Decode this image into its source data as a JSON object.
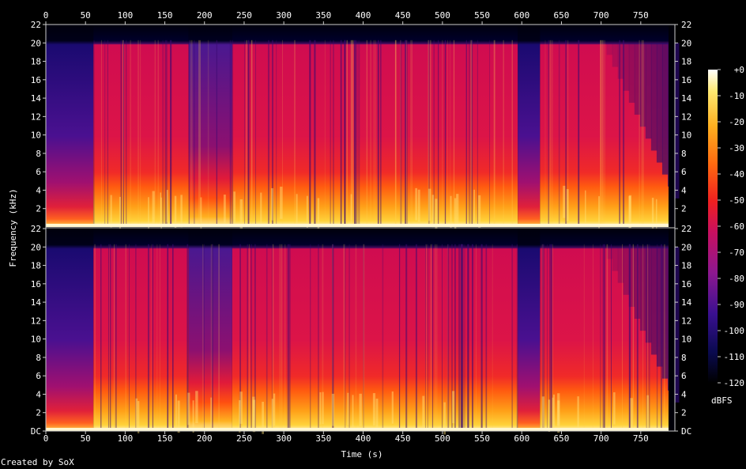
{
  "chart_data": {
    "type": "heatmap",
    "title": "",
    "xlabel": "Time (s)",
    "ylabel": "Frequency (kHz)",
    "xlim": [
      0,
      793
    ],
    "x_ticks": [
      "0",
      "50",
      "100",
      "150",
      "200",
      "250",
      "300",
      "350",
      "400",
      "450",
      "500",
      "550",
      "600",
      "650",
      "700",
      "750"
    ],
    "x_tick_values": [
      0,
      50,
      100,
      150,
      200,
      250,
      300,
      350,
      400,
      450,
      500,
      550,
      600,
      650,
      700,
      750
    ],
    "ylim": [
      0,
      22
    ],
    "y_ticks_top": [
      "2",
      "4",
      "6",
      "8",
      "10",
      "12",
      "14",
      "16",
      "18",
      "20",
      "22"
    ],
    "y_ticks_bottom": [
      "DC",
      "2",
      "4",
      "6",
      "8",
      "10",
      "12",
      "14",
      "16",
      "18",
      "20",
      "22"
    ],
    "y_tick_values_bottom": [
      0,
      2,
      4,
      6,
      8,
      10,
      12,
      14,
      16,
      18,
      20,
      22
    ],
    "channels": 2,
    "colorbar": {
      "label": "dBFS",
      "ticks": [
        "+0",
        "-10",
        "-20",
        "-30",
        "-40",
        "-50",
        "-60",
        "-70",
        "-80",
        "-90",
        "-100",
        "-110",
        "-120"
      ],
      "tick_values": [
        0,
        -10,
        -20,
        -30,
        -40,
        -50,
        -60,
        -70,
        -80,
        -90,
        -100,
        -110,
        -120
      ],
      "range": [
        -120,
        0
      ]
    },
    "segments": [
      {
        "t": [
          0,
          60
        ],
        "level": "quiet"
      },
      {
        "t": [
          60,
          180
        ],
        "level": "loud"
      },
      {
        "t": [
          180,
          235
        ],
        "level": "mixed"
      },
      {
        "t": [
          235,
          595
        ],
        "level": "loud"
      },
      {
        "t": [
          595,
          623
        ],
        "level": "quiet"
      },
      {
        "t": [
          623,
          793
        ],
        "level": "loud-decay"
      }
    ]
  },
  "credit": "Created by SoX"
}
